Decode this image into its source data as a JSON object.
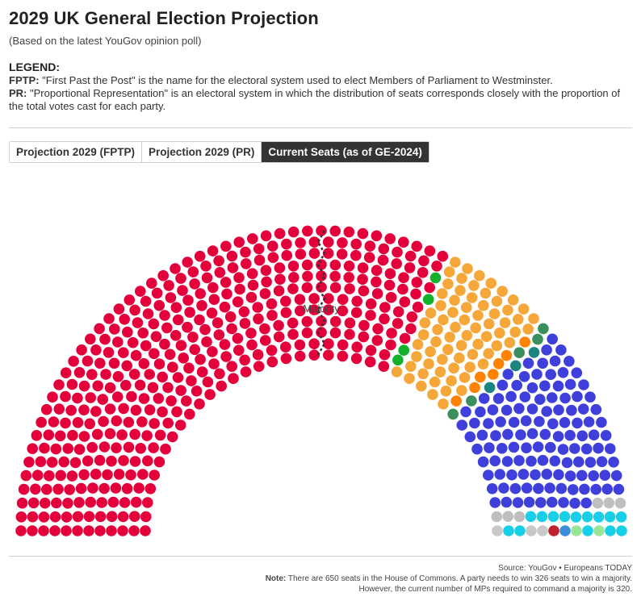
{
  "header": {
    "title": "2029 UK General Election Projection",
    "subtitle": "(Based on the latest YouGov opinion poll)"
  },
  "legend": {
    "heading": "LEGEND:",
    "fptp_term": "FPTP:",
    "fptp_text": " \"First Past the Post\" is the name for the electoral system used to elect Members of Parliament to Westminster.",
    "pr_term": "PR:",
    "pr_text": " \"Proportional Representation\" is an electoral system in which the distribution of seats corresponds closely with the proportion of the total votes cast for each party."
  },
  "tabs": [
    {
      "label": "Projection 2029 (FPTP)",
      "active": false
    },
    {
      "label": "Projection 2029 (PR)",
      "active": false
    },
    {
      "label": "Current Seats (as of GE-2024)",
      "active": true
    }
  ],
  "chart_data": {
    "type": "parliament",
    "total_seats": 650,
    "majority_label": "Majority",
    "parties": [
      {
        "color": "#E4003B",
        "seats": 411
      },
      {
        "color": "#12B02B",
        "seats": 4
      },
      {
        "color": "#F6A73A",
        "seats": 72
      },
      {
        "color": "#FF8200",
        "seats": 7
      },
      {
        "color": "#3A8F5C",
        "seats": 5
      },
      {
        "color": "#1C8581",
        "seats": 3
      },
      {
        "color": "#3F40DC",
        "seats": 121
      },
      {
        "color": "#BFBFBF",
        "seats": 6
      },
      {
        "color": "#17D0E8",
        "seats": 14
      },
      {
        "color": "#99E699",
        "seats": 2
      },
      {
        "color": "#3C8DDC",
        "seats": 1
      },
      {
        "color": "#C0202B",
        "seats": 1
      },
      {
        "color": "#C8C8C8",
        "seats": 3
      }
    ]
  },
  "footer": {
    "source": "Source: YouGov • Europeans TODAY",
    "note_label": "Note:",
    "note_text": " There are 650 seats in the House of Commons. A party needs to win 326 seats to win a majority.",
    "note_text2": "However, the current number of MPs required to command a majority is 320."
  }
}
